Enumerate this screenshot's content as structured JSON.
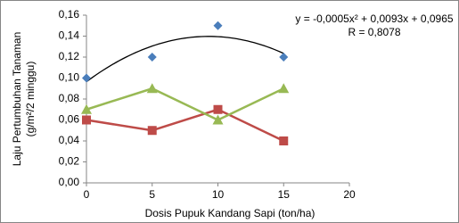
{
  "chart_data": {
    "type": "scatter",
    "x_label": "Dosis Pupuk Kandang Sapi (ton/ha)",
    "y_label": [
      "Laju Pertumbuhan Tanaman",
      "(g/m²/2 minggu)"
    ],
    "x": [
      0,
      5,
      10,
      15
    ],
    "series": [
      {
        "color": "#4a7ebb",
        "marker": "diamond",
        "line": false,
        "values": [
          0.1,
          0.12,
          0.15,
          0.12
        ]
      },
      {
        "color": "#be4b48",
        "marker": "square",
        "line": true,
        "values": [
          0.06,
          0.05,
          0.07,
          0.04
        ]
      },
      {
        "color": "#98b954",
        "marker": "triangle",
        "line": true,
        "values": [
          0.07,
          0.09,
          0.06,
          0.09
        ]
      }
    ],
    "trendline": {
      "series": 0,
      "color": "#000000",
      "coefficients": [
        -0.0005,
        0.0093,
        0.0965
      ],
      "equation": "y = -0,0005x² + 0,0093x + 0,0965",
      "r_label": "R = 0,8078"
    },
    "xlim": [
      0,
      20
    ],
    "xticks": [
      0,
      5,
      10,
      15,
      20
    ],
    "ylim": [
      0,
      0.16
    ],
    "yticks": [
      {
        "value": 0,
        "label": "0,00"
      },
      {
        "value": 0.02,
        "label": "0,02"
      },
      {
        "value": 0.04,
        "label": "0,04"
      },
      {
        "value": 0.06,
        "label": "0,06"
      },
      {
        "value": 0.08,
        "label": "0,08"
      },
      {
        "value": 0.1,
        "label": "0,10"
      },
      {
        "value": 0.12,
        "label": "0,12"
      },
      {
        "value": 0.14,
        "label": "0,14"
      },
      {
        "value": 0.16,
        "label": "0,16"
      }
    ],
    "grid": false
  }
}
